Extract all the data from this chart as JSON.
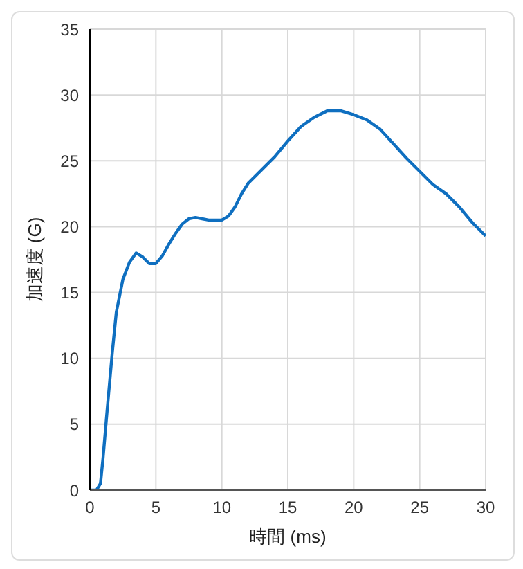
{
  "chart_data": {
    "type": "line",
    "xlabel": "時間 (ms)",
    "ylabel": "加速度 (G)",
    "xlim": [
      0,
      30
    ],
    "xticks": [
      0,
      5,
      10,
      15,
      20,
      25,
      30
    ],
    "ylim": [
      0,
      35
    ],
    "yticks": [
      0,
      5,
      10,
      15,
      20,
      25,
      30,
      35
    ],
    "grid": true,
    "marker": "none",
    "line_style": "solid",
    "series": [
      {
        "color": "#0f6fc0",
        "x": [
          0,
          0.5,
          0.8,
          1,
          1.3,
          1.7,
          2,
          2.5,
          3,
          3.5,
          4,
          4.5,
          5,
          5.5,
          6,
          6.5,
          7,
          7.5,
          8,
          8.5,
          9,
          10,
          10.5,
          11,
          11.5,
          12,
          13,
          14,
          15,
          16,
          17,
          18,
          19,
          20,
          21,
          22,
          23,
          24,
          25,
          26,
          27,
          28,
          29,
          30
        ],
        "values": [
          0,
          0,
          0.5,
          2.5,
          6,
          10.5,
          13.5,
          16,
          17.3,
          18,
          17.7,
          17.2,
          17.2,
          17.8,
          18.7,
          19.5,
          20.2,
          20.6,
          20.7,
          20.6,
          20.5,
          20.5,
          20.8,
          21.5,
          22.5,
          23.3,
          24.3,
          25.3,
          26.5,
          27.6,
          28.3,
          28.8,
          28.8,
          28.5,
          28.1,
          27.4,
          26.3,
          25.2,
          24.2,
          23.2,
          22.5,
          21.5,
          20.3,
          19.3
        ]
      }
    ]
  }
}
